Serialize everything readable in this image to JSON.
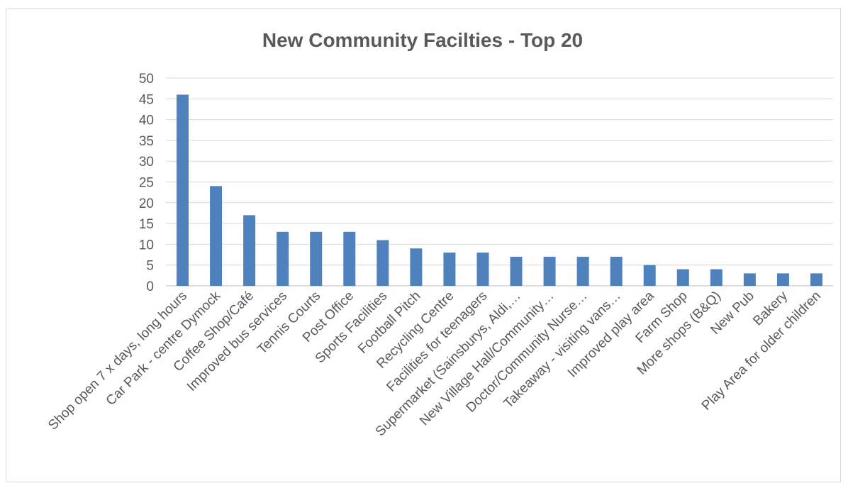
{
  "chart_data": {
    "type": "bar",
    "title": "New Community Facilties - Top 20",
    "xlabel": "",
    "ylabel": "",
    "ylim": [
      0,
      50
    ],
    "yticks": [
      0,
      5,
      10,
      15,
      20,
      25,
      30,
      35,
      40,
      45,
      50
    ],
    "grid": true,
    "legend": "none",
    "bar_color": "#4f81bd",
    "categories": [
      "Shop open 7 x days, long hours",
      "Car Park - centre Dymock",
      "Coffee Shop/Café",
      "Improved bus services",
      "Tennis Courts",
      "Post Office",
      "Sports Facilities",
      "Football Pitch",
      "Recycling Centre",
      "Facilities for teenagers",
      "Supermarket (Sainsburys, Aldi,…",
      "New Village Hall/Community…",
      "Doctor/Community Nurse…",
      "Takeaway - visiting vans…",
      "Improved play area",
      "Farm Shop",
      "More shops (B&Q)",
      "New Pub",
      "Bakery",
      "Play Area for older children"
    ],
    "values": [
      46,
      24,
      17,
      13,
      13,
      13,
      11,
      9,
      8,
      8,
      7,
      7,
      7,
      7,
      5,
      4,
      4,
      3,
      3,
      3
    ]
  }
}
